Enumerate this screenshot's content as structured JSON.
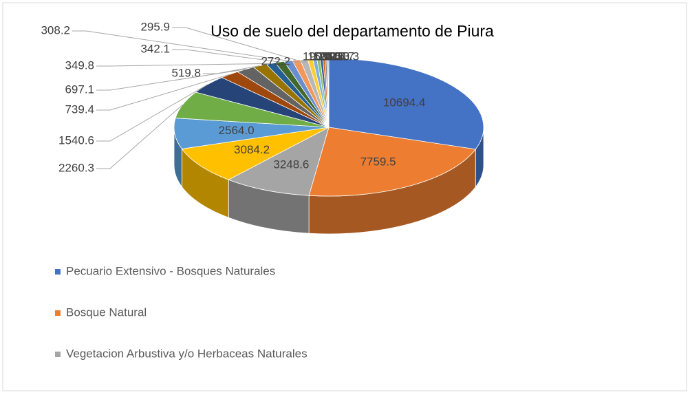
{
  "chart_data": {
    "type": "pie",
    "title": "Uso de suelo del departamento de Piura",
    "categories": [
      "Pecuario Extensivo - Bosques Naturales",
      "Bosque Natural",
      "Vegetacion Arbustiva y/o Herbaceas Naturales",
      null,
      null,
      null,
      null,
      null,
      null,
      null,
      null,
      null,
      null,
      null,
      null,
      null,
      null,
      null,
      null,
      null,
      null,
      null,
      null
    ],
    "values": [
      10694.4,
      7759.5,
      3248.6,
      3084.2,
      2564.0,
      2260.3,
      1540.6,
      739.4,
      697.1,
      519.8,
      349.8,
      342.1,
      308.2,
      295.9,
      272.2,
      190.3,
      150.2,
      120.5,
      100.4,
      80.6,
      60.3,
      45.7,
      30.3
    ],
    "value_labels": [
      "10694.4",
      "7759.5",
      "3248.6",
      "3084.2",
      "2564.0",
      "2260.3",
      "1540.6",
      "739.4",
      "697.1",
      "519.8",
      "349.8",
      "342.1",
      "308.2",
      "295.9",
      "272.2",
      "190.3",
      "150.2",
      "120.5",
      "100.4",
      "80.6",
      "60.3",
      "45.7",
      "30.3"
    ],
    "colors": [
      "#4472C4",
      "#ED7D31",
      "#A5A5A5",
      "#FFC000",
      "#5B9BD5",
      "#70AD47",
      "#264478",
      "#9E480E",
      "#636363",
      "#997300",
      "#255E91",
      "#43682B",
      "#698ED0",
      "#F1975A",
      "#B7B7B7",
      "#FFCD33",
      "#7CAFDD",
      "#8CC168",
      "#335AA1",
      "#D26012",
      "#848484",
      "#CC9A00",
      "#327DC2"
    ],
    "legend": "bottom-left"
  }
}
